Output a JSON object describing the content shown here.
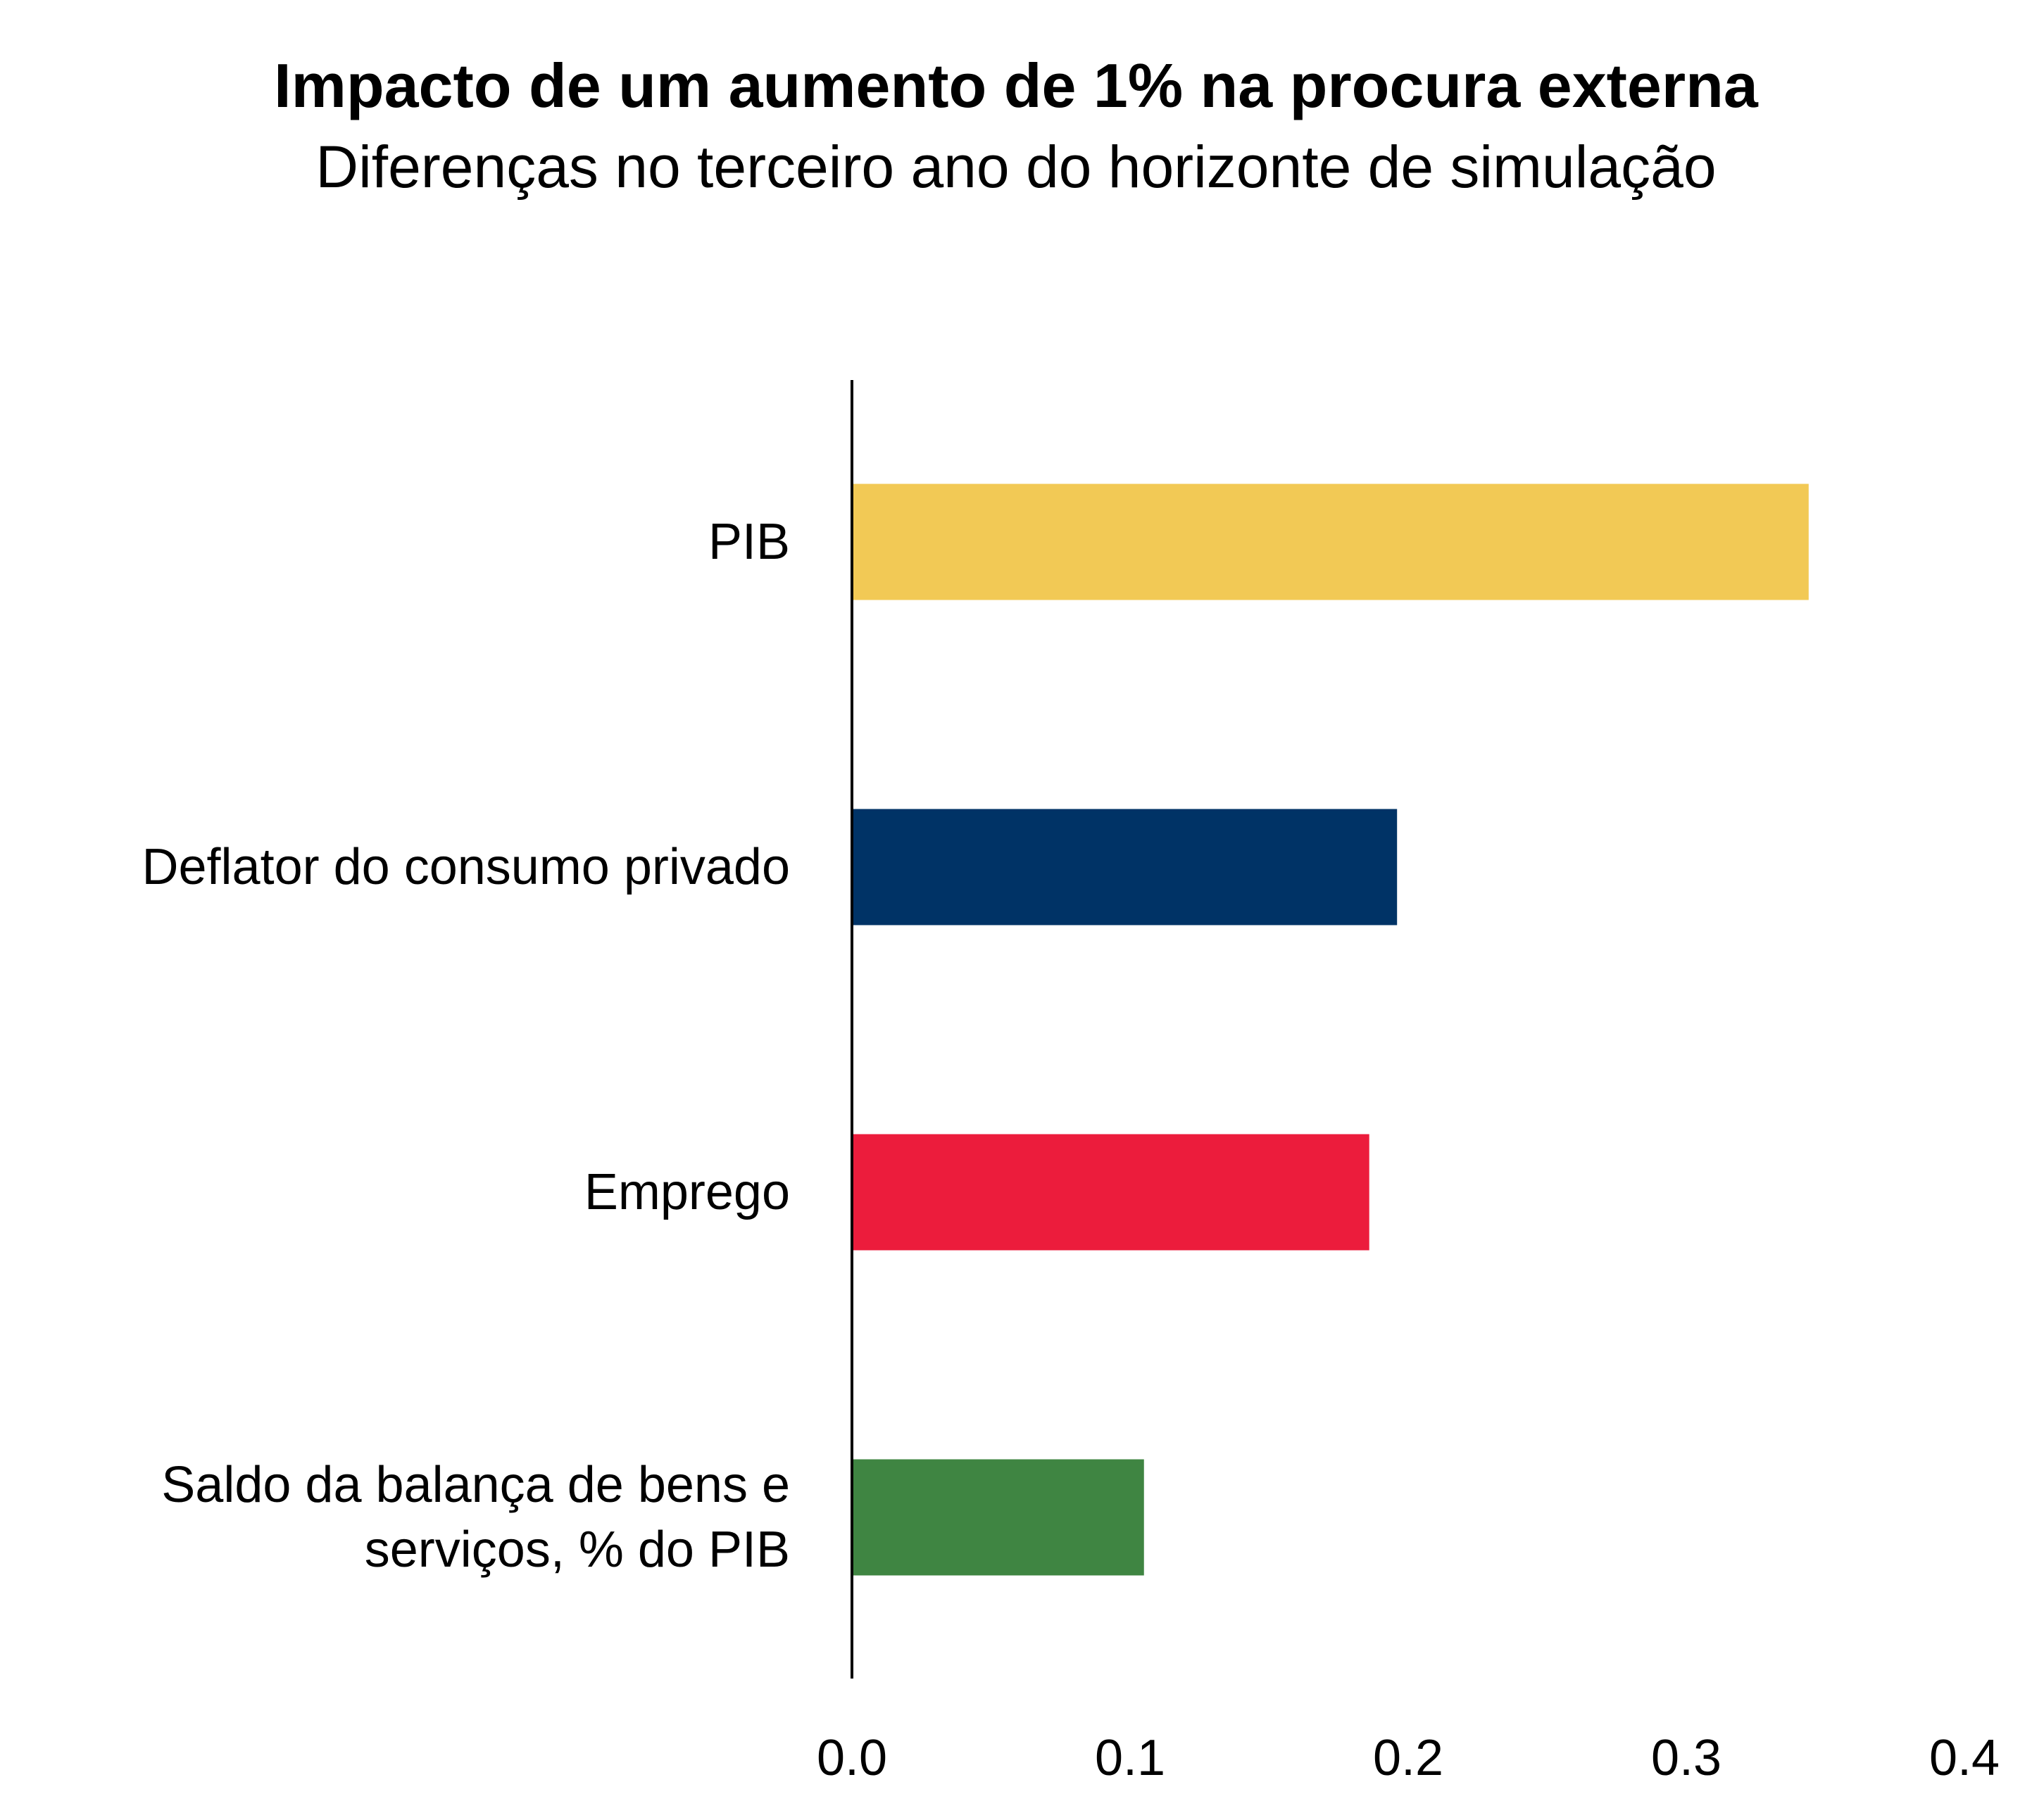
{
  "chart_data": {
    "type": "bar",
    "orientation": "horizontal",
    "title": "Impacto de um aumento de 1% na procura externa",
    "subtitle": "Diferenças no terceiro ano do horizonte de simulação",
    "categories": [
      "PIB",
      "Deflator do consumo privado",
      "Emprego",
      "Saldo da balança de bens e serviços, % do PIB"
    ],
    "category_lines": [
      [
        "PIB"
      ],
      [
        "Deflator do consumo privado"
      ],
      [
        "Emprego"
      ],
      [
        "Saldo da balança de bens e",
        "serviços, % do PIB"
      ]
    ],
    "values": [
      0.344,
      0.196,
      0.186,
      0.105
    ],
    "colors": [
      "#F2C955",
      "#003366",
      "#EC1C3C",
      "#3F8542"
    ],
    "xlim": [
      0.0,
      0.4
    ],
    "xticks": [
      "0.0",
      "0.1",
      "0.2",
      "0.3",
      "0.4"
    ],
    "xlabel": "",
    "ylabel": "",
    "grid": false,
    "legend": "none"
  }
}
